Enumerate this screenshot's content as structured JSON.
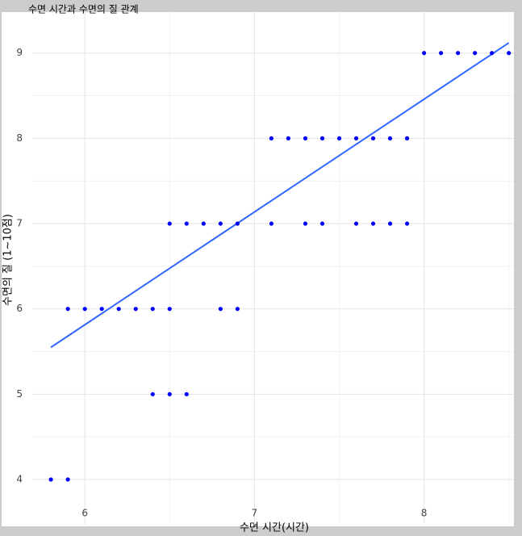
{
  "chart_data": {
    "type": "scatter",
    "title": "수면 시간과 수면의 질 관계",
    "x_label": "수면 시간(시간)",
    "y_label": "수면의 질 (1~10점)",
    "x": [
      5.8,
      5.9,
      6.4,
      6.5,
      6.6,
      5.9,
      6.0,
      6.1,
      6.2,
      6.3,
      6.4,
      6.5,
      6.8,
      6.9,
      6.5,
      6.6,
      6.7,
      6.8,
      6.9,
      7.1,
      7.3,
      7.4,
      7.6,
      7.7,
      7.8,
      7.9,
      7.1,
      7.2,
      7.3,
      7.4,
      7.5,
      7.6,
      7.7,
      7.8,
      7.9,
      8.0,
      8.1,
      8.2,
      8.3,
      8.4,
      8.5
    ],
    "values": [
      4,
      4,
      5,
      5,
      5,
      6,
      6,
      6,
      6,
      6,
      6,
      6,
      6,
      6,
      7,
      7,
      7,
      7,
      7,
      7,
      7,
      7,
      7,
      7,
      7,
      7,
      8,
      8,
      8,
      8,
      8,
      8,
      8,
      8,
      8,
      9,
      9,
      9,
      9,
      9,
      9
    ],
    "color": "#0000ff",
    "trend_line": {
      "x": [
        5.8,
        8.5
      ],
      "values": [
        5.55,
        9.12
      ],
      "color": "#3366ff"
    },
    "xlim": [
      5.69,
      8.53
    ],
    "ylim": [
      3.47,
      9.48
    ],
    "xticks": [
      6,
      7,
      8
    ],
    "yticks": [
      4,
      5,
      6,
      7,
      8,
      9
    ],
    "xminorticks": [
      6.5,
      7.5,
      8.5
    ],
    "yminorticks": [
      4.5,
      5.5,
      6.5,
      7.5,
      8.5
    ],
    "grid": true
  }
}
